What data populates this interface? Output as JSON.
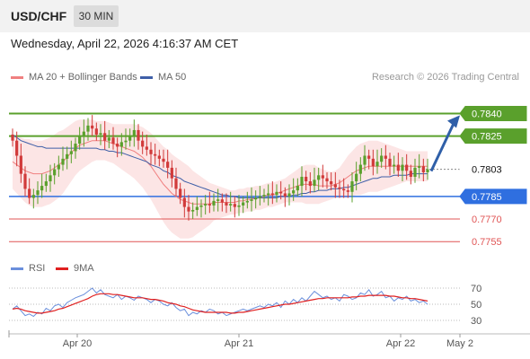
{
  "header": {
    "pair": "USD/CHF",
    "timeframe": "30 MIN"
  },
  "timestamp": "Wednesday, April 22, 2026 4:16:37 AM CET",
  "legend": {
    "ma20_label": "MA 20 + Bollinger Bands",
    "ma50_label": "MA 50",
    "copyright": "Research © 2026 Trading Central",
    "rsi_label": "RSI",
    "rsi_ma_label": "9MA"
  },
  "colors": {
    "ma20": "#f08080",
    "band": "#fbdcdc",
    "ma50": "#3f5fa8",
    "resistance": "#5aa02c",
    "support_blue": "#2f6fe0",
    "support_red": "#e05555",
    "current": "#111111",
    "candle_up": "#5aa02c",
    "candle_down": "#d13a3a",
    "rsi": "#6a8fdc",
    "rsi_ma": "#e02020",
    "arrow": "#2f5fa8"
  },
  "chart_data": {
    "type": "candlestick",
    "x_tick_labels": [
      "Apr 20",
      "Apr 21",
      "Apr 22",
      "May 2"
    ],
    "y_range": [
      0.7745,
      0.7851
    ],
    "levels": [
      {
        "price": 0.784,
        "label": "0.7840",
        "kind": "resistance"
      },
      {
        "price": 0.7825,
        "label": "0.7825",
        "kind": "resistance"
      },
      {
        "price": 0.7803,
        "label": "0.7803",
        "kind": "current"
      },
      {
        "price": 0.7785,
        "label": "0.7785",
        "kind": "support"
      },
      {
        "price": 0.777,
        "label": "0.7770",
        "kind": "support-weak"
      },
      {
        "price": 0.7755,
        "label": "0.7755",
        "kind": "support-weak"
      }
    ],
    "close": [
      0.7822,
      0.7812,
      0.78,
      0.779,
      0.7784,
      0.7786,
      0.7789,
      0.7792,
      0.7795,
      0.7799,
      0.7803,
      0.7806,
      0.781,
      0.7813,
      0.7815,
      0.782,
      0.7825,
      0.7828,
      0.7832,
      0.783,
      0.7826,
      0.7827,
      0.7822,
      0.7824,
      0.782,
      0.7818,
      0.7821,
      0.7822,
      0.7825,
      0.7829,
      0.7822,
      0.7818,
      0.7816,
      0.7813,
      0.7812,
      0.781,
      0.7808,
      0.7804,
      0.7797,
      0.779,
      0.7784,
      0.7778,
      0.7775,
      0.7776,
      0.7778,
      0.7779,
      0.778,
      0.7779,
      0.7782,
      0.7783,
      0.7781,
      0.7779,
      0.778,
      0.7778,
      0.7779,
      0.7781,
      0.7782,
      0.7783,
      0.7784,
      0.7785,
      0.7786,
      0.7787,
      0.7786,
      0.7788,
      0.7787,
      0.7785,
      0.7787,
      0.7789,
      0.7792,
      0.7798,
      0.7795,
      0.7792,
      0.7796,
      0.7799,
      0.7797,
      0.7795,
      0.7793,
      0.7791,
      0.779,
      0.7789,
      0.7788,
      0.7795,
      0.78,
      0.7806,
      0.7812,
      0.781,
      0.7805,
      0.7808,
      0.7812,
      0.781,
      0.7805,
      0.7806,
      0.7802,
      0.7806,
      0.7802,
      0.7798,
      0.7804,
      0.7805,
      0.7801,
      0.7803
    ],
    "ma20": [
      0.7808,
      0.7806,
      0.7804,
      0.7802,
      0.7801,
      0.78,
      0.78,
      0.78,
      0.7801,
      0.7802,
      0.7804,
      0.7806,
      0.7808,
      0.7811,
      0.7814,
      0.7817,
      0.7819,
      0.782,
      0.7821,
      0.7822,
      0.7822,
      0.7822,
      0.7822,
      0.7821,
      0.782,
      0.7819,
      0.7818,
      0.7817,
      0.7816,
      0.7815,
      0.7813,
      0.7811,
      0.7808,
      0.7805,
      0.7801,
      0.7797,
      0.7793,
      0.779,
      0.7787,
      0.7785,
      0.7783,
      0.7782,
      0.7781,
      0.778,
      0.778,
      0.778,
      0.778,
      0.778,
      0.7781,
      0.7781,
      0.7781,
      0.7781,
      0.7781,
      0.7781,
      0.7782,
      0.7782,
      0.7783,
      0.7783,
      0.7784,
      0.7784,
      0.7785,
      0.7786,
      0.7786,
      0.7787,
      0.7788,
      0.7789,
      0.779,
      0.7791,
      0.7792,
      0.7793,
      0.7793,
      0.7793,
      0.7793,
      0.7792,
      0.7792,
      0.7792,
      0.7792,
      0.7793,
      0.7794,
      0.7796,
      0.7798,
      0.78,
      0.7802,
      0.7803,
      0.7804,
      0.7805,
      0.7805,
      0.7805,
      0.7805,
      0.7805,
      0.7805,
      0.7805,
      0.7805,
      0.7805,
      0.7805,
      0.7805,
      0.7805,
      0.7805,
      0.7805,
      0.7805
    ],
    "ma50": [
      0.7826,
      0.7824,
      0.7822,
      0.7821,
      0.782,
      0.7819,
      0.7818,
      0.7818,
      0.7817,
      0.7817,
      0.7817,
      0.7817,
      0.7817,
      0.7817,
      0.7817,
      0.7817,
      0.7817,
      0.7817,
      0.7817,
      0.7817,
      0.7817,
      0.7816,
      0.7816,
      0.7815,
      0.7815,
      0.7814,
      0.7814,
      0.7813,
      0.7812,
      0.7811,
      0.781,
      0.7809,
      0.7808,
      0.7806,
      0.7805,
      0.7804,
      0.7802,
      0.7801,
      0.7799,
      0.7798,
      0.7797,
      0.7795,
      0.7794,
      0.7793,
      0.7792,
      0.7791,
      0.779,
      0.7789,
      0.7788,
      0.7787,
      0.7786,
      0.7786,
      0.7785,
      0.7785,
      0.7784,
      0.7784,
      0.7784,
      0.7784,
      0.7784,
      0.7784,
      0.7784,
      0.7784,
      0.7784,
      0.7784,
      0.7785,
      0.7785,
      0.7785,
      0.7786,
      0.7786,
      0.7787,
      0.7787,
      0.7788,
      0.7788,
      0.7789,
      0.7789,
      0.7789,
      0.779,
      0.779,
      0.779,
      0.7791,
      0.7791,
      0.7792,
      0.7793,
      0.7794,
      0.7795,
      0.7796,
      0.7797,
      0.7797,
      0.7798,
      0.7798,
      0.7798,
      0.7799,
      0.7799,
      0.7799,
      0.7799,
      0.78,
      0.78,
      0.78,
      0.78,
      0.78
    ],
    "band_width": [
      0.0018,
      0.0019,
      0.002,
      0.0021,
      0.0022,
      0.0022,
      0.0022,
      0.0022,
      0.0022,
      0.0022,
      0.0022,
      0.0022,
      0.0021,
      0.002,
      0.0019,
      0.0018,
      0.0017,
      0.0016,
      0.0015,
      0.0014,
      0.0013,
      0.0013,
      0.0013,
      0.0013,
      0.0013,
      0.0014,
      0.0015,
      0.0016,
      0.0017,
      0.0018,
      0.0019,
      0.002,
      0.0021,
      0.0022,
      0.0023,
      0.0024,
      0.0025,
      0.0026,
      0.0026,
      0.0026,
      0.0026,
      0.0025,
      0.0024,
      0.0022,
      0.002,
      0.0018,
      0.0016,
      0.0014,
      0.0012,
      0.0011,
      0.001,
      0.0009,
      0.0008,
      0.0008,
      0.0008,
      0.0008,
      0.0008,
      0.0008,
      0.0008,
      0.0008,
      0.0008,
      0.0008,
      0.0008,
      0.0008,
      0.0008,
      0.0008,
      0.0009,
      0.001,
      0.0011,
      0.0012,
      0.0013,
      0.0013,
      0.0013,
      0.0012,
      0.0011,
      0.001,
      0.0009,
      0.0009,
      0.001,
      0.0012,
      0.0014,
      0.0015,
      0.0016,
      0.0017,
      0.0017,
      0.0017,
      0.0017,
      0.0017,
      0.0016,
      0.0015,
      0.0014,
      0.0013,
      0.0012,
      0.0011,
      0.001,
      0.001,
      0.001,
      0.001,
      0.001,
      0.001
    ],
    "rsi": [
      44,
      48,
      42,
      36,
      38,
      35,
      40,
      38,
      45,
      42,
      48,
      50,
      46,
      52,
      55,
      58,
      60,
      62,
      66,
      70,
      64,
      68,
      62,
      60,
      58,
      62,
      56,
      60,
      58,
      55,
      60,
      58,
      56,
      52,
      56,
      54,
      50,
      48,
      52,
      46,
      42,
      44,
      36,
      40,
      38,
      42,
      40,
      44,
      42,
      38,
      40,
      36,
      38,
      40,
      42,
      44,
      42,
      44,
      46,
      48,
      46,
      50,
      48,
      52,
      46,
      54,
      50,
      56,
      52,
      58,
      54,
      60,
      66,
      62,
      58,
      60,
      56,
      58,
      54,
      62,
      60,
      56,
      58,
      64,
      62,
      68,
      60,
      62,
      66,
      58,
      60,
      54,
      58,
      56,
      60,
      54,
      56,
      52,
      54,
      50
    ],
    "rsi_ma": [
      44,
      45,
      44,
      42,
      41,
      40,
      39,
      39,
      40,
      41,
      42,
      44,
      45,
      47,
      49,
      51,
      53,
      55,
      57,
      60,
      62,
      63,
      63,
      63,
      62,
      62,
      61,
      60,
      59,
      58,
      58,
      58,
      57,
      56,
      56,
      55,
      54,
      52,
      51,
      50,
      48,
      47,
      45,
      43,
      42,
      41,
      40,
      40,
      40,
      40,
      40,
      40,
      39,
      39,
      40,
      40,
      41,
      42,
      43,
      44,
      45,
      46,
      47,
      48,
      49,
      50,
      50,
      51,
      52,
      53,
      54,
      55,
      56,
      57,
      57,
      58,
      58,
      58,
      58,
      58,
      58,
      59,
      59,
      60,
      60,
      61,
      61,
      61,
      61,
      61,
      60,
      60,
      59,
      58,
      58,
      57,
      57,
      56,
      55,
      54
    ],
    "rsi_ticks": [
      {
        "value": 70,
        "label": "70"
      },
      {
        "value": 50,
        "label": "50"
      },
      {
        "value": 30,
        "label": "30"
      }
    ]
  }
}
